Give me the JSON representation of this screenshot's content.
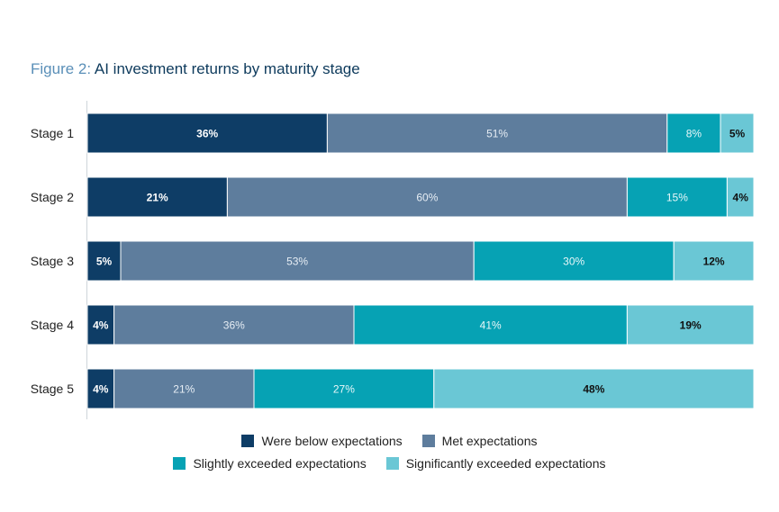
{
  "title": {
    "prefix": "Figure 2:",
    "text": "AI investment returns by maturity stage"
  },
  "chart_data": {
    "type": "bar",
    "orientation": "horizontal",
    "stacked": true,
    "categories": [
      "Stage 1",
      "Stage 2",
      "Stage 3",
      "Stage 4",
      "Stage 5"
    ],
    "series": [
      {
        "name": "Were below expectations",
        "color": "#0e3d66",
        "label_color": "#ffffff",
        "label_bold": true,
        "values": [
          36,
          21,
          5,
          4,
          4
        ]
      },
      {
        "name": "Met expectations",
        "color": "#5e7d9d",
        "label_color": "#e6edf4",
        "label_bold": false,
        "values": [
          51,
          60,
          53,
          36,
          21
        ]
      },
      {
        "name": "Slightly exceeded expectations",
        "color": "#06a2b4",
        "label_color": "#e8f7f9",
        "label_bold": false,
        "values": [
          8,
          15,
          30,
          41,
          27
        ]
      },
      {
        "name": "Significantly exceeded expectations",
        "color": "#6ac7d5",
        "label_color": "#111111",
        "label_bold": true,
        "values": [
          5,
          4,
          12,
          19,
          48
        ]
      }
    ],
    "value_suffix": "%",
    "xlim": [
      0,
      100
    ],
    "legend_position": "bottom"
  }
}
